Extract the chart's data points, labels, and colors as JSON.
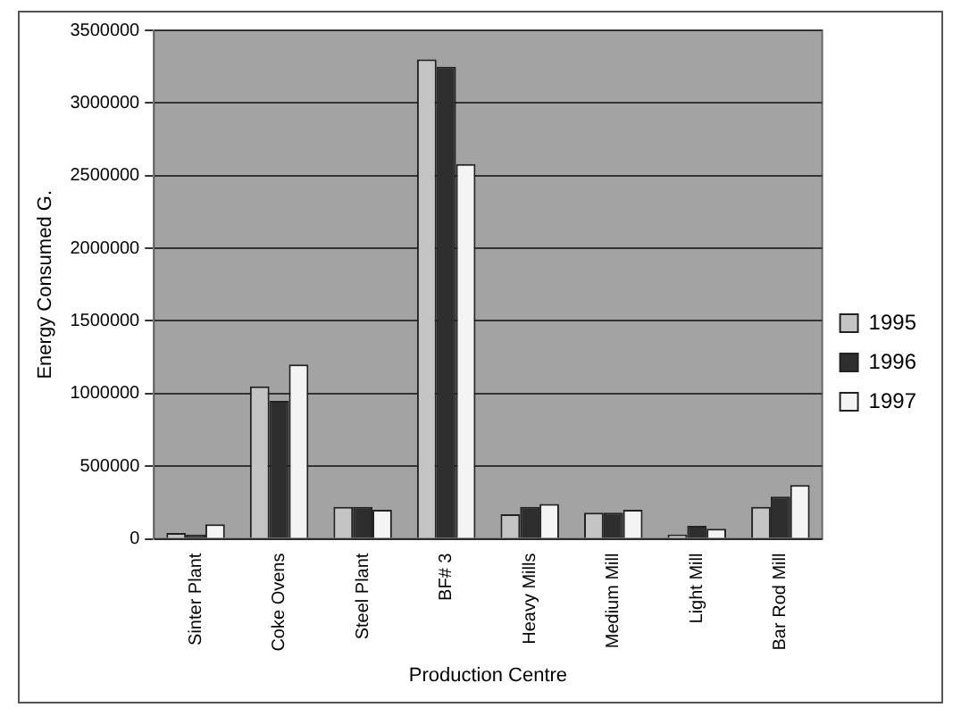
{
  "chart_data": {
    "type": "bar",
    "xlabel": "Production Centre",
    "ylabel": "Energy Consumed G.",
    "categories": [
      "Sinter Plant",
      "Coke Ovens",
      "Steel Plant",
      "BF# 3",
      "Heavy Mills",
      "Medium Mill",
      "Light Mill",
      "Bar Rod Mill"
    ],
    "series": [
      {
        "name": "1995",
        "color": "#c4c4c4",
        "values": [
          40000,
          1050000,
          220000,
          3300000,
          170000,
          180000,
          30000,
          220000
        ]
      },
      {
        "name": "1996",
        "color": "#2e2e2e",
        "values": [
          30000,
          950000,
          220000,
          3250000,
          220000,
          180000,
          90000,
          290000
        ]
      },
      {
        "name": "1997",
        "color": "#f4f4f4",
        "values": [
          100000,
          1200000,
          200000,
          2580000,
          240000,
          200000,
          70000,
          370000
        ]
      }
    ],
    "ylim": [
      0,
      3500000
    ],
    "yticks": [
      0,
      500000,
      1000000,
      1500000,
      2000000,
      2500000,
      3000000,
      3500000
    ],
    "grid": "y",
    "legend": "right"
  }
}
